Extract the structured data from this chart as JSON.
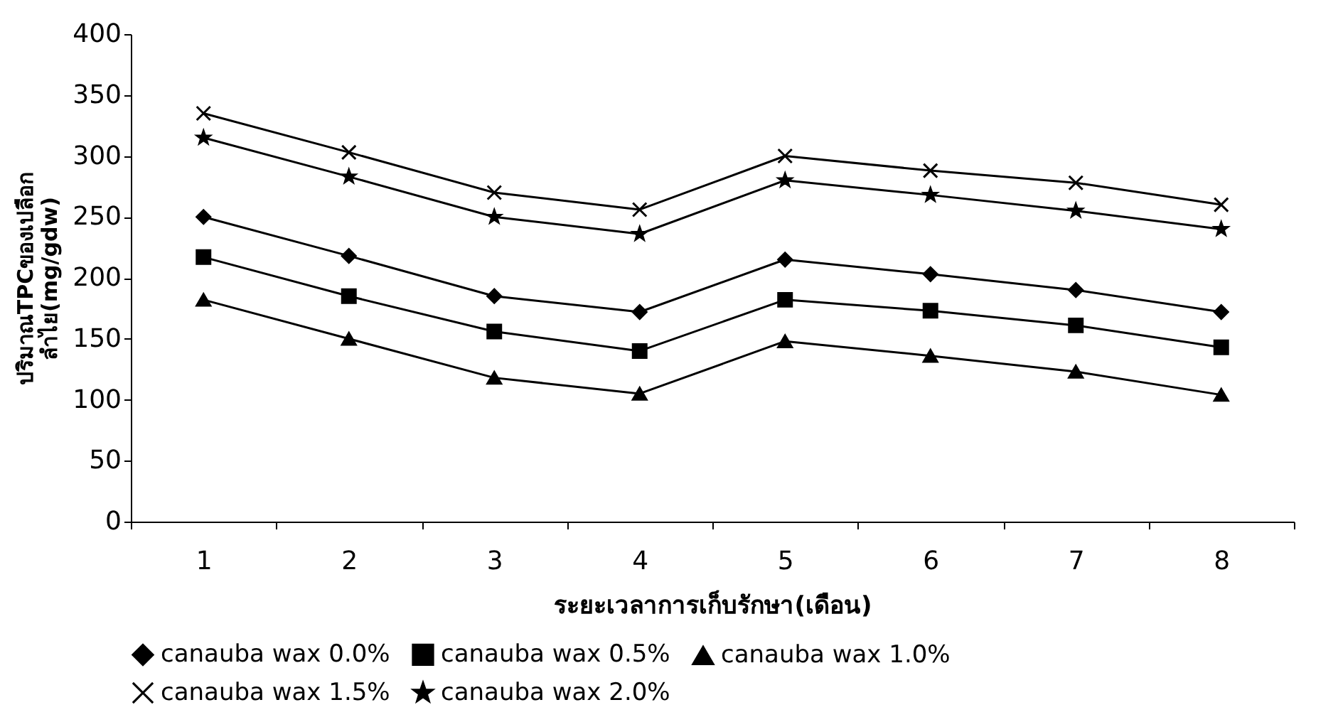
{
  "chart_data": {
    "type": "line",
    "xlabel": "ระยะเวลาการเก็บรักษา(เดือน)",
    "ylabel": "ปริมาณTPCของเปลือก\nลำไย(mg/gdw)",
    "categories": [
      "1",
      "2",
      "3",
      "4",
      "5",
      "6",
      "7",
      "8"
    ],
    "ylim": [
      0,
      400
    ],
    "yticks": [
      0,
      50,
      100,
      150,
      200,
      250,
      300,
      350,
      400
    ],
    "grid": false,
    "legend": "bottom",
    "series": [
      {
        "name": "canauba wax 0.0%",
        "color": "#000000",
        "marker": "diamond",
        "values": [
          250,
          218,
          185,
          172,
          215,
          203,
          190,
          172
        ]
      },
      {
        "name": "canauba wax 0.5%",
        "color": "#000000",
        "marker": "square",
        "values": [
          217,
          185,
          156,
          140,
          182,
          173,
          161,
          143
        ]
      },
      {
        "name": "canauba wax 1.0%",
        "color": "#000000",
        "marker": "triangle",
        "values": [
          182,
          150,
          118,
          105,
          148,
          136,
          123,
          104
        ]
      },
      {
        "name": "canauba wax 1.5%",
        "color": "#000000",
        "marker": "cross",
        "values": [
          335,
          303,
          270,
          256,
          300,
          288,
          278,
          260
        ]
      },
      {
        "name": "canauba wax 2.0%",
        "color": "#000000",
        "marker": "star",
        "values": [
          315,
          283,
          250,
          236,
          280,
          268,
          255,
          240
        ]
      }
    ]
  }
}
